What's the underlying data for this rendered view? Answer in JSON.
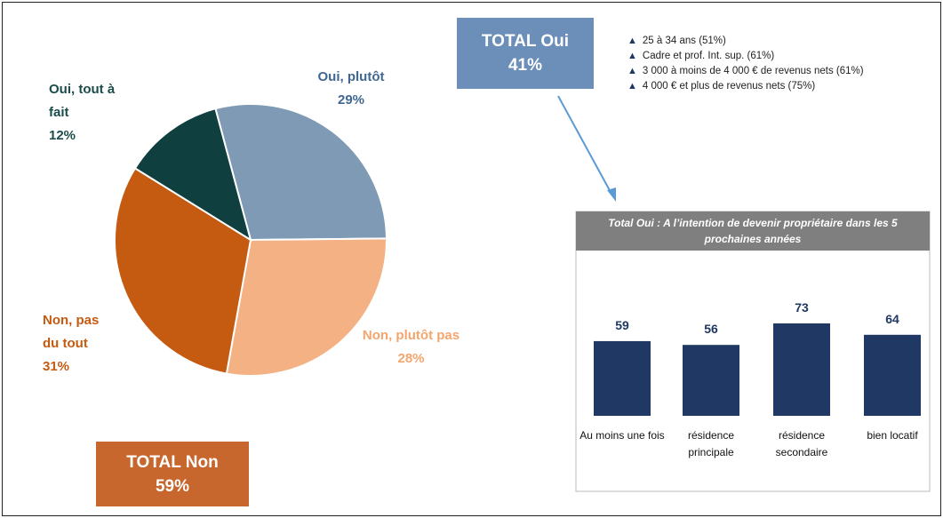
{
  "chart_data": [
    {
      "type": "pie",
      "categories": [
        "Oui, plutôt",
        "Non, plutôt pas",
        "Non, pas du tout",
        "Oui, tout à fait"
      ],
      "values": [
        29,
        28,
        31,
        12
      ],
      "value_labels": [
        "29%",
        "28%",
        "31%",
        "12%"
      ],
      "colors": [
        "#7f9ab5",
        "#f4b183",
        "#c55a11",
        "#0f3f3f"
      ],
      "label_colors": [
        "#3f6792",
        "#f4a56e",
        "#c55a11",
        "#1b4b4b"
      ],
      "annotations": [
        {
          "text": "TOTAL Oui",
          "value": 41,
          "value_label": "41%",
          "color": "#6b8fb8"
        },
        {
          "text": "TOTAL Non",
          "value": 59,
          "value_label": "59%",
          "color": "#c8672d"
        }
      ],
      "notes": [
        "25 à 34 ans (51%)",
        "Cadre et prof. Int. sup. (61%)",
        "3 000 à moins de 4 000 € de revenus nets (61%)",
        "4 000 € et plus de revenus nets (75%)"
      ]
    },
    {
      "type": "bar",
      "title": "Total Oui : A l’intention de devenir propriétaire dans les 5 prochaines années",
      "categories": [
        "Au moins une fois",
        "résidence principale",
        "résidence secondaire",
        "bien locatif"
      ],
      "values": [
        59,
        56,
        73,
        64
      ],
      "color": "#1f3864"
    }
  ]
}
